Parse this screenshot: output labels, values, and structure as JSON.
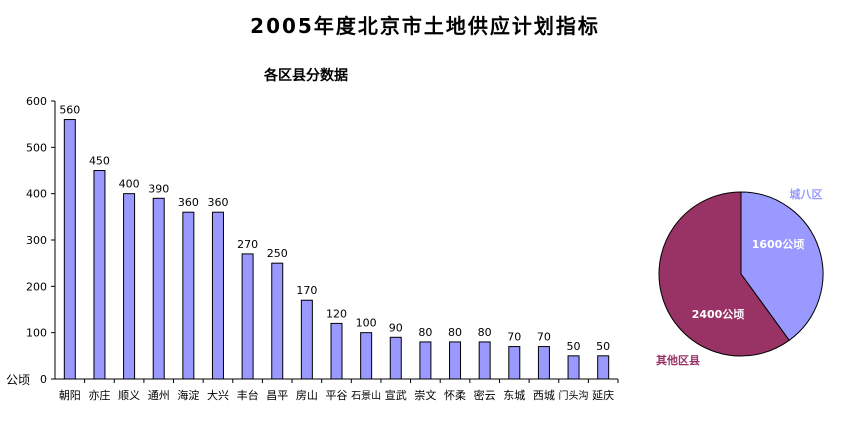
{
  "title": "2005年度北京市土地供应计划指标",
  "chart_data": [
    {
      "type": "bar",
      "title": "各区县分数据",
      "ylabel": "公顷",
      "ylim": [
        0,
        600
      ],
      "yticks": [
        0,
        100,
        200,
        300,
        400,
        500,
        600
      ],
      "grid": false,
      "legend": "none",
      "categories": [
        "朝阳",
        "亦庄",
        "顺义",
        "通州",
        "海淀",
        "大兴",
        "丰台",
        "昌平",
        "房山",
        "平谷",
        "石景山",
        "宣武",
        "崇文",
        "怀柔",
        "密云",
        "东城",
        "西城",
        "门头沟",
        "延庆"
      ],
      "values": [
        560,
        450,
        400,
        390,
        360,
        360,
        270,
        250,
        170,
        120,
        100,
        90,
        80,
        80,
        80,
        70,
        70,
        50,
        50
      ],
      "colors": {
        "bar": "#9999ff",
        "bar_edge": "#000000"
      }
    },
    {
      "type": "pie",
      "slices": [
        {
          "name": "城八区",
          "label": "1600公顷",
          "value": 1600,
          "color": "#9999ff",
          "name_color": "#9999ff"
        },
        {
          "name": "其他区县",
          "label": "2400公顷",
          "value": 2400,
          "color": "#993366",
          "name_color": "#993366"
        }
      ]
    }
  ]
}
